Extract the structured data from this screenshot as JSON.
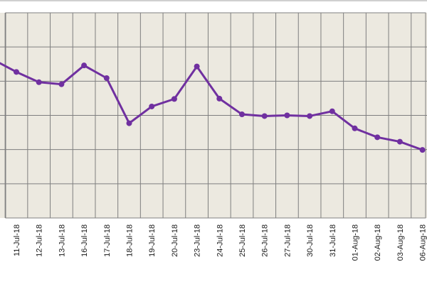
{
  "chart_data": {
    "type": "line",
    "title": "",
    "xlabel": "",
    "ylabel": "",
    "x": [
      "11-Jul-18",
      "12-Jul-18",
      "13-Jul-18",
      "16-Jul-18",
      "17-Jul-18",
      "18-Jul-18",
      "19-Jul-18",
      "20-Jul-18",
      "23-Jul-18",
      "24-Jul-18",
      "25-Jul-18",
      "26-Jul-18",
      "27-Jul-18",
      "30-Jul-18",
      "31-Jul-18",
      "01-Aug-18",
      "02-Aug-18",
      "03-Aug-18",
      "06-Aug-18"
    ],
    "series": [
      {
        "name": "",
        "values": [
          4.27,
          3.97,
          3.91,
          4.46,
          4.09,
          2.77,
          3.26,
          3.48,
          4.43,
          3.49,
          3.03,
          2.98,
          3.0,
          2.98,
          3.12,
          2.62,
          2.36,
          2.23,
          1.99
        ]
      }
    ],
    "ylim": [
      0,
      6
    ],
    "grid": true,
    "legend": "none",
    "colors": {
      "line": "#7030a0",
      "plot_background": "#ece9e0",
      "grid": "#7f7f7f",
      "border": "#808080"
    }
  }
}
